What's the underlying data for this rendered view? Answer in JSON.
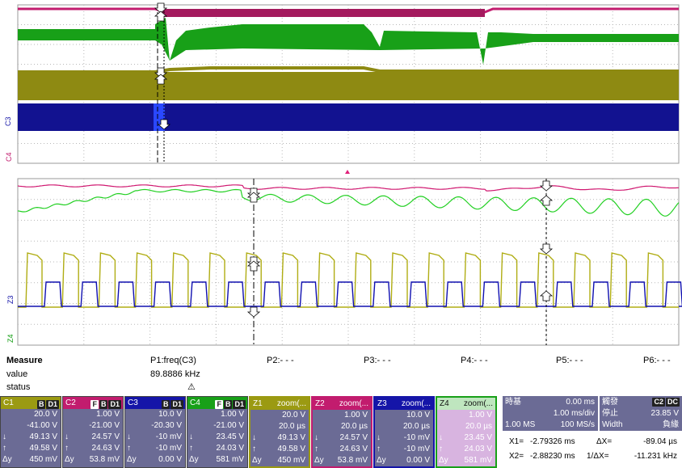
{
  "colors": {
    "c1": "#9b9a12",
    "c2": "#c21c6e",
    "c3": "#1515a8",
    "c4": "#18a018",
    "tile_bg": "#6b6b95",
    "zoom4_bg": "#d8b4e0"
  },
  "markers": {
    "c3_label": "C3",
    "c3_sub": "C4",
    "z3_label": "Z3",
    "z4_label": "Z4"
  },
  "measure": {
    "title": "Measure",
    "value_label": "value",
    "status_label": "status",
    "params": [
      {
        "name": "P1:freq(C3)",
        "value": "89.8886 kHz",
        "status": "⚠"
      },
      {
        "name": "P2:- - -",
        "value": "",
        "status": ""
      },
      {
        "name": "P3:- - -",
        "value": "",
        "status": ""
      },
      {
        "name": "P4:- - -",
        "value": "",
        "status": ""
      },
      {
        "name": "P5:- - -",
        "value": "",
        "status": ""
      },
      {
        "name": "P6:- - -",
        "value": "",
        "status": ""
      }
    ]
  },
  "channel_tiles": [
    {
      "label": "C1",
      "tags": [
        "B",
        "D1"
      ],
      "v1": "20.0 V",
      "v2": "-41.00 V",
      "down": "49.13 V",
      "up": "49.58 V",
      "dy": "450 mV"
    },
    {
      "label": "C2",
      "tags": [
        "F",
        "B",
        "D1"
      ],
      "v1": "1.00 V",
      "v2": "-21.00 V",
      "down": "24.57 V",
      "up": "24.63 V",
      "dy": "53.8 mV"
    },
    {
      "label": "C3",
      "tags": [
        "B",
        "D1"
      ],
      "v1": "10.0 V",
      "v2": "-20.30 V",
      "down": "-10 mV",
      "up": "-10 mV",
      "dy": "0.00 V"
    },
    {
      "label": "C4",
      "tags": [
        "F",
        "B",
        "D1"
      ],
      "v1": "1.00 V",
      "v2": "-21.00 V",
      "down": "23.45 V",
      "up": "24.03 V",
      "dy": "581 mV"
    }
  ],
  "zoom_tiles": [
    {
      "label": "Z1",
      "name": "zoom(...",
      "v1": "20.0 V",
      "v2": "20.0 µs",
      "down": "49.13 V",
      "up": "49.58 V",
      "dy": "450 mV"
    },
    {
      "label": "Z2",
      "name": "zoom(...",
      "v1": "1.00 V",
      "v2": "20.0 µs",
      "down": "24.57 V",
      "up": "24.63 V",
      "dy": "53.8 mV"
    },
    {
      "label": "Z3",
      "name": "zoom(...",
      "v1": "10.0 V",
      "v2": "20.0 µs",
      "down": "-10 mV",
      "up": "-10 mV",
      "dy": "0.00 V"
    },
    {
      "label": "Z4",
      "name": "zoom(...",
      "v1": "1.00 V",
      "v2": "20.0 µs",
      "down": "23.45 V",
      "up": "24.03 V",
      "dy": "581 mV"
    }
  ],
  "timebase": {
    "title": "時基",
    "delay": "0.00 ms",
    "per_div": "1.00 ms/div",
    "samples": "1.00 MS",
    "rate": "100 MS/s"
  },
  "trigger": {
    "title": "觸發",
    "tags": [
      "C2",
      "DC"
    ],
    "mode": "停止",
    "level": "23.85 V",
    "type": "Width",
    "slope": "負緣"
  },
  "cursors": {
    "x1_label": "X1=",
    "x1": "-2.79326 ms",
    "dx_label": "ΔX=",
    "dx": "-89.04 µs",
    "x2_label": "X2=",
    "x2": "-2.88230 ms",
    "inv_label": "1/ΔX=",
    "inv": "-11.231 kHz"
  },
  "labels": {
    "down": "↓",
    "up": "↑",
    "dy": "Δy"
  }
}
